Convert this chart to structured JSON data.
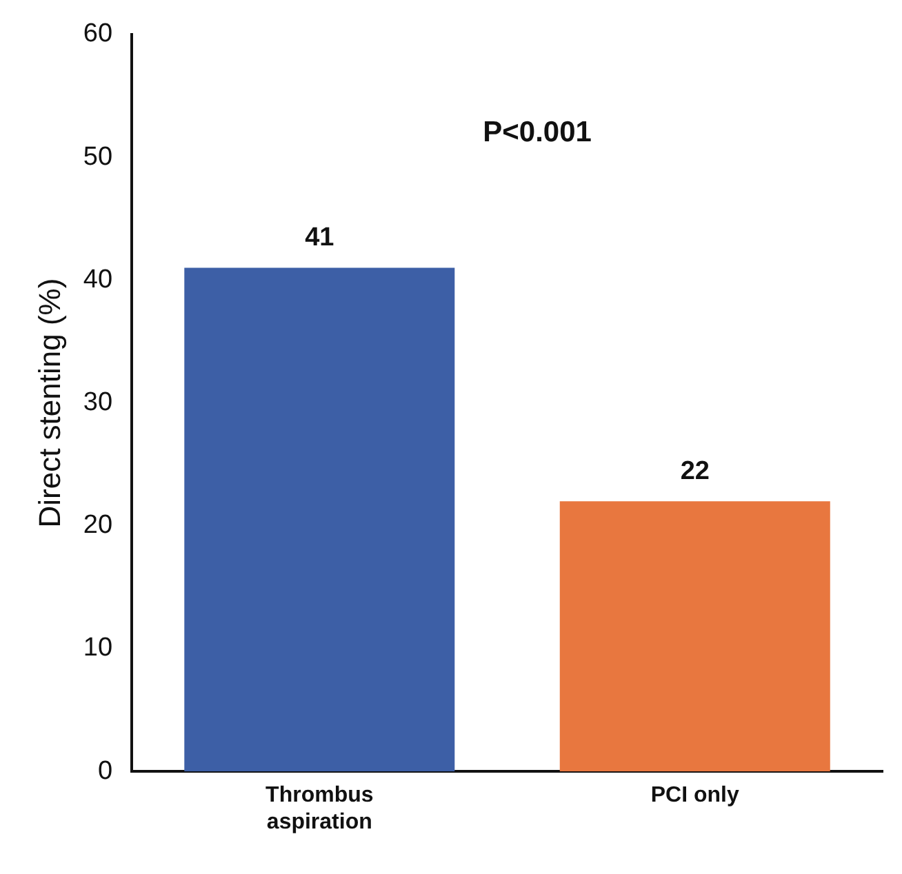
{
  "chart_data": {
    "type": "bar",
    "ylabel": "Direct stenting (%)",
    "categories": [
      "Thrombus aspiration",
      "PCI only"
    ],
    "values": [
      41,
      22
    ],
    "colors": [
      "#3d5fa6",
      "#e8773f"
    ],
    "ylim": [
      0,
      60
    ],
    "yticks": [
      0,
      10,
      20,
      30,
      40,
      50,
      60
    ],
    "grid": false,
    "legend": false,
    "data_labels": true,
    "annotations": [
      "P<0.001"
    ]
  }
}
